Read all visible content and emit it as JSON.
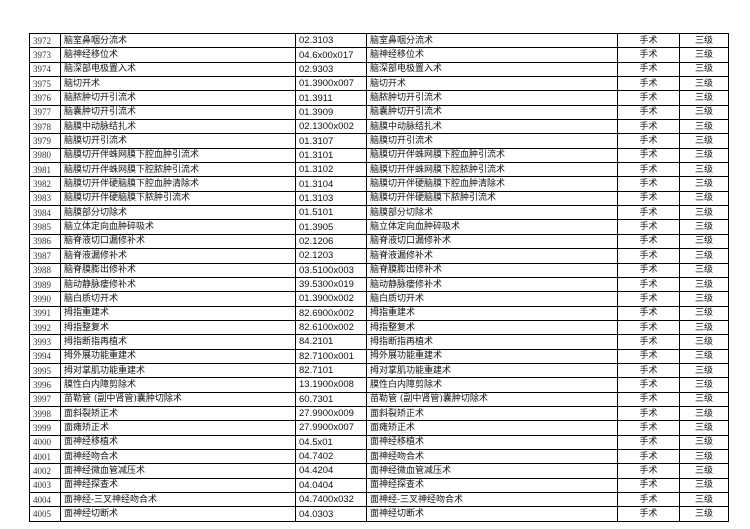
{
  "table": {
    "rows": [
      [
        "3972",
        "脑室鼻咽分流术",
        "02.3103",
        "脑室鼻咽分流术",
        "手术",
        "三级"
      ],
      [
        "3973",
        "脑神经移位术",
        "04.6x00x017",
        "脑神经移位术",
        "手术",
        "三级"
      ],
      [
        "3974",
        "脑深部电极置入术",
        "02.9303",
        "脑深部电极置入术",
        "手术",
        "三级"
      ],
      [
        "3975",
        "脑切开术",
        "01.3900x007",
        "脑切开术",
        "手术",
        "三级"
      ],
      [
        "3976",
        "脑脓肿切开引流术",
        "01.3911",
        "脑脓肿切开引流术",
        "手术",
        "三级"
      ],
      [
        "3977",
        "脑囊肿切开引流术",
        "01.3909",
        "脑囊肿切开引流术",
        "手术",
        "三级"
      ],
      [
        "3978",
        "脑膜中动脉结扎术",
        "02.1300x002",
        "脑膜中动脉结扎术",
        "手术",
        "三级"
      ],
      [
        "3979",
        "脑膜切开引流术",
        "01.3107",
        "脑膜切开引流术",
        "手术",
        "三级"
      ],
      [
        "3980",
        "脑膜切开伴蛛网膜下腔血肿引流术",
        "01.3101",
        "脑膜切开伴蛛网膜下腔血肿引流术",
        "手术",
        "三级"
      ],
      [
        "3981",
        "脑膜切开伴蛛网膜下腔脓肿引流术",
        "01.3102",
        "脑膜切开伴蛛网膜下腔脓肿引流术",
        "手术",
        "三级"
      ],
      [
        "3982",
        "脑膜切开伴硬脑膜下腔血肿清除术",
        "01.3104",
        "脑膜切开伴硬脑膜下腔血肿清除术",
        "手术",
        "三级"
      ],
      [
        "3983",
        "脑膜切开伴硬脑膜下脓肿引流术",
        "01.3103",
        "脑膜切开伴硬脑膜下脓肿引流术",
        "手术",
        "三级"
      ],
      [
        "3984",
        "脑膜部分切除术",
        "01.5101",
        "脑膜部分切除术",
        "手术",
        "三级"
      ],
      [
        "3985",
        "脑立体定向血肿碎吸术",
        "01.3905",
        "脑立体定向血肿碎吸术",
        "手术",
        "三级"
      ],
      [
        "3986",
        "脑脊液切口漏修补术",
        "02.1206",
        "脑脊液切口漏修补术",
        "手术",
        "三级"
      ],
      [
        "3987",
        "脑脊液漏修补术",
        "02.1203",
        "脑脊液漏修补术",
        "手术",
        "三级"
      ],
      [
        "3988",
        "脑脊膜膨出修补术",
        "03.5100x003",
        "脑脊膜膨出修补术",
        "手术",
        "三级"
      ],
      [
        "3989",
        "脑动静脉瘘修补术",
        "39.5300x019",
        "脑动静脉瘘修补术",
        "手术",
        "三级"
      ],
      [
        "3990",
        "脑白质切开术",
        "01.3900x002",
        "脑白质切开术",
        "手术",
        "三级"
      ],
      [
        "3991",
        "拇指重建术",
        "82.6900x002",
        "拇指重建术",
        "手术",
        "三级"
      ],
      [
        "3992",
        "拇指整复术",
        "82.6100x002",
        "拇指整复术",
        "手术",
        "三级"
      ],
      [
        "3993",
        "拇指断指再植术",
        "84.2101",
        "拇指断指再植术",
        "手术",
        "三级"
      ],
      [
        "3994",
        "拇外展功能重建术",
        "82.7100x001",
        "拇外展功能重建术",
        "手术",
        "三级"
      ],
      [
        "3995",
        "拇对掌肌功能重建术",
        "82.7101",
        "拇对掌肌功能重建术",
        "手术",
        "三级"
      ],
      [
        "3996",
        "膜性白内障剪除术",
        "13.1900x008",
        "膜性白内障剪除术",
        "手术",
        "三级"
      ],
      [
        "3997",
        "苗勒管 (副中肾管)囊肿切除术",
        "60.7301",
        "苗勒管 (副中肾管)囊肿切除术",
        "手术",
        "三级"
      ],
      [
        "3998",
        "面斜裂矫正术",
        "27.9900x009",
        "面斜裂矫正术",
        "手术",
        "三级"
      ],
      [
        "3999",
        "面瘫矫正术",
        "27.9900x007",
        "面瘫矫正术",
        "手术",
        "三级"
      ],
      [
        "4000",
        "面神经移植术",
        "04.5x01",
        "面神经移植术",
        "手术",
        "三级"
      ],
      [
        "4001",
        "面神经吻合术",
        "04.7402",
        "面神经吻合术",
        "手术",
        "三级"
      ],
      [
        "4002",
        "面神经微血管减压术",
        "04.4204",
        "面神经微血管减压术",
        "手术",
        "三级"
      ],
      [
        "4003",
        "面神经探查术",
        "04.0404",
        "面神经探查术",
        "手术",
        "三级"
      ],
      [
        "4004",
        "面神经-三叉神经吻合术",
        "04.7400x032",
        "面神经-三叉神经吻合术",
        "手术",
        "三级"
      ],
      [
        "4005",
        "面神经切断术",
        "04.0303",
        "面神经切断术",
        "手术",
        "三级"
      ]
    ]
  }
}
